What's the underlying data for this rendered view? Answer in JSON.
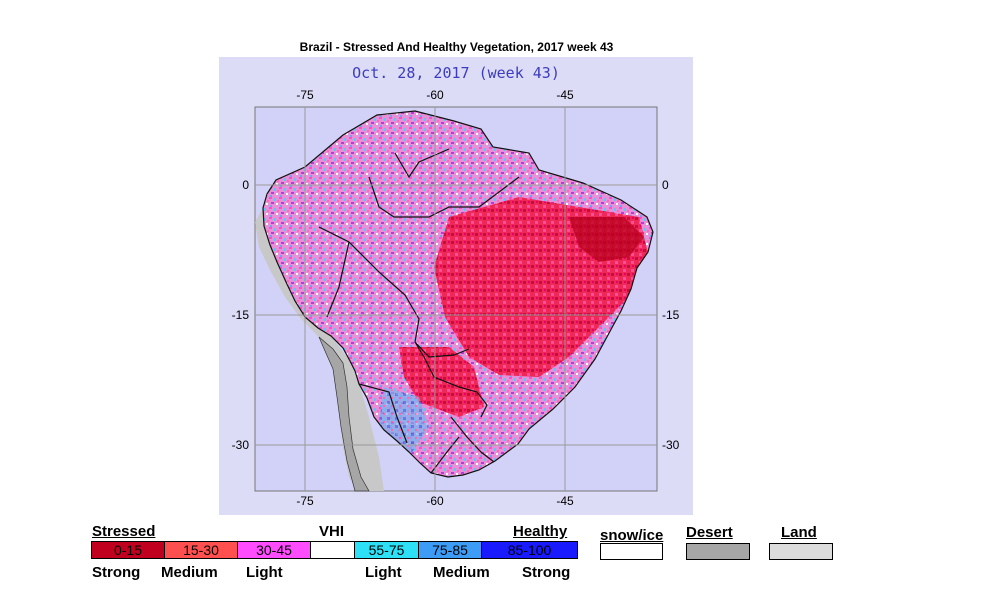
{
  "title": "Brazil - Stressed And Healthy Vegetation, 2017 week 43",
  "map": {
    "date_label": "Oct. 28, 2017 (week 43)",
    "lon_ticks": [
      "-75",
      "-60",
      "-45"
    ],
    "lat_ticks": [
      "0",
      "-15",
      "-30"
    ],
    "colors": {
      "background": "#dcdcf6",
      "land": "#c8c8c8",
      "desert": "#a6a6a6",
      "stressed_strong": "#b3001b",
      "stressed_medium": "#ff4040",
      "stressed_light": "#f03cdc",
      "healthy_light": "#40dcf6",
      "healthy_medium": "#3c8cf0",
      "healthy_strong": "#1e28e6"
    }
  },
  "legend": {
    "stressed_label": "Stressed",
    "vhi_label": "VHI",
    "healthy_label": "Healthy",
    "bins": [
      {
        "label": "0-15",
        "color": "#c0001e"
      },
      {
        "label": "15-30",
        "color": "#ff4f4f"
      },
      {
        "label": "30-45",
        "color": "#ff4cff"
      },
      {
        "label": "",
        "color": "#ffffff"
      },
      {
        "label": "55-75",
        "color": "#2ee0f6"
      },
      {
        "label": "75-85",
        "color": "#3c9cf6"
      },
      {
        "label": "85-100",
        "color": "#1a1aff"
      }
    ],
    "bottom_labels": [
      "Strong",
      "Medium",
      "Light",
      "Light",
      "Medium",
      "Strong"
    ],
    "extra": [
      {
        "label": "snow/ice",
        "color": "#ffffff"
      },
      {
        "label": "Desert",
        "color": "#a6a6a6"
      },
      {
        "label": "Land",
        "color": "#dcdcdc"
      }
    ]
  }
}
